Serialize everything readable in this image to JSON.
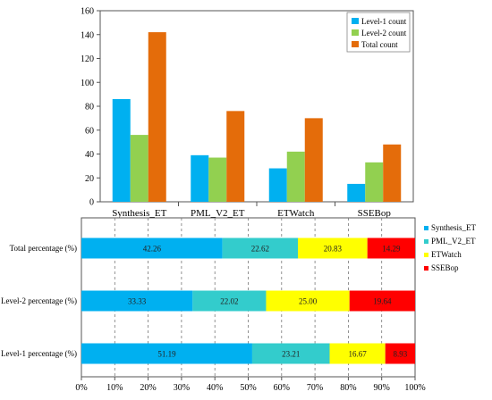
{
  "chart_data": [
    {
      "type": "bar",
      "categories": [
        "Synthesis_ET",
        "PML_V2_ET",
        "ETWatch",
        "SSEBop"
      ],
      "series": [
        {
          "name": "Level-1 count",
          "values": [
            86,
            39,
            28,
            15
          ],
          "color": "#00b0f0"
        },
        {
          "name": "Level-2 count",
          "values": [
            56,
            37,
            42,
            33
          ],
          "color": "#92d050"
        },
        {
          "name": "Total count",
          "values": [
            142,
            76,
            70,
            48
          ],
          "color": "#e46c0a"
        }
      ],
      "ylim": [
        0,
        160
      ],
      "yticks": [
        0,
        20,
        40,
        60,
        80,
        100,
        120,
        140,
        160
      ],
      "legend": "top-right",
      "grid": false
    },
    {
      "type": "bar",
      "orientation": "horizontal",
      "stacked": true,
      "categories": [
        "Total percentage (%)",
        "Level-2 percentage (%)",
        "Level-1 percentage (%)"
      ],
      "series": [
        {
          "name": "Synthesis_ET",
          "values": [
            42.26,
            33.33,
            51.19
          ],
          "labels": [
            "42.26",
            "33.33",
            "51.19"
          ],
          "color": "#00b0f0"
        },
        {
          "name": "PML_V2_ET",
          "values": [
            22.62,
            22.02,
            23.21
          ],
          "labels": [
            "22.62",
            "22.02",
            "23.21"
          ],
          "color": "#33cccc"
        },
        {
          "name": "ETWatch",
          "values": [
            20.83,
            25.0,
            16.67
          ],
          "labels": [
            "20.83",
            "25.00",
            "16.67"
          ],
          "color": "#ffff00"
        },
        {
          "name": "SSEBop",
          "values": [
            14.29,
            19.64,
            8.93
          ],
          "labels": [
            "14.29",
            "19.64",
            "8.93"
          ],
          "color": "#ff0000"
        }
      ],
      "xlim": [
        0,
        100
      ],
      "xticks": [
        "0%",
        "10%",
        "20%",
        "30%",
        "40%",
        "50%",
        "60%",
        "70%",
        "80%",
        "90%",
        "100%"
      ],
      "legend": "right",
      "grid": true
    }
  ]
}
